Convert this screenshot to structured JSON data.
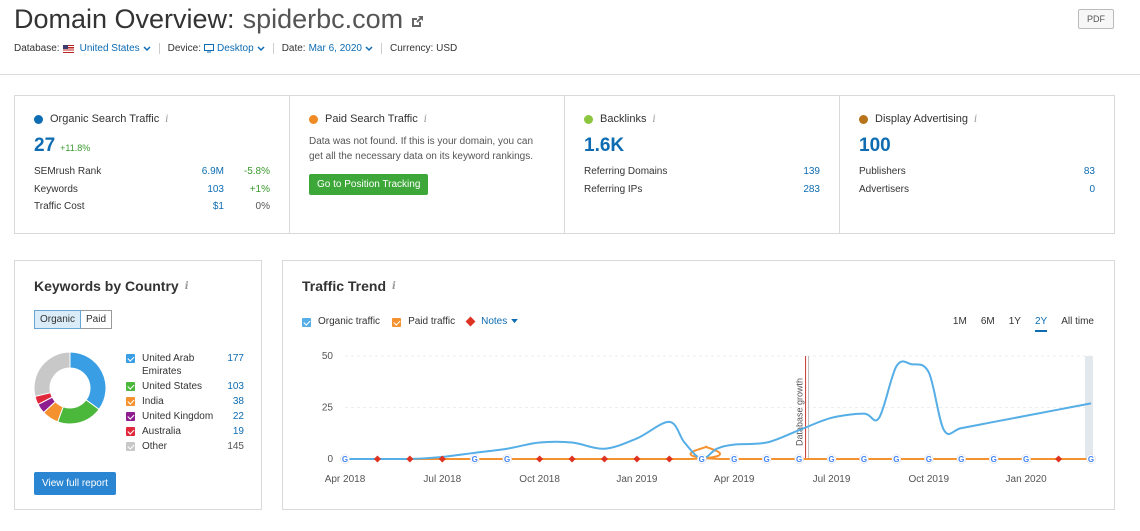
{
  "header": {
    "title_prefix": "Domain Overview:",
    "domain": "spiderbc.com",
    "database_label": "Database:",
    "database_value": "United States",
    "device_label": "Device:",
    "device_value": "Desktop",
    "date_label": "Date:",
    "date_value": "Mar 6, 2020",
    "currency": "Currency: USD",
    "pdf_label": "PDF",
    "icons": [
      "external-link-icon",
      "us-flag-icon",
      "desktop-icon",
      "chevron-down-icon"
    ]
  },
  "summary": {
    "organic": {
      "title": "Organic Search Traffic",
      "value": "27",
      "delta": "+11.8%",
      "color": "#0d6cb2",
      "rows": [
        {
          "label": "SEMrush Rank",
          "value": "6.9M",
          "change": "-5.8%"
        },
        {
          "label": "Keywords",
          "value": "103",
          "change": "+1%"
        },
        {
          "label": "Traffic Cost",
          "value": "$1",
          "change": "0%"
        }
      ]
    },
    "paid": {
      "title": "Paid Search Traffic",
      "color": "#f08a24",
      "desc": "Data was not found. If this is your domain, you can get all the necessary data on its keyword rankings.",
      "button": "Go to Position Tracking"
    },
    "backlinks": {
      "title": "Backlinks",
      "value": "1.6K",
      "color": "#8cc63f",
      "rows": [
        {
          "label": "Referring Domains",
          "value": "139"
        },
        {
          "label": "Referring IPs",
          "value": "283"
        }
      ]
    },
    "display": {
      "title": "Display Advertising",
      "value": "100",
      "color": "#b8731a",
      "rows": [
        {
          "label": "Publishers",
          "value": "83"
        },
        {
          "label": "Advertisers",
          "value": "0"
        }
      ]
    },
    "info_glyph": "i"
  },
  "keywords_by_country": {
    "title": "Keywords by Country",
    "toggle": [
      "Organic",
      "Paid"
    ],
    "countries": [
      {
        "name": "United Arab Emirates",
        "value": 177,
        "color": "#3a9ee4"
      },
      {
        "name": "United States",
        "value": 103,
        "color": "#4cb83b"
      },
      {
        "name": "India",
        "value": 38,
        "color": "#f5922f"
      },
      {
        "name": "United Kingdom",
        "value": 22,
        "color": "#8e1e8f"
      },
      {
        "name": "Australia",
        "value": 19,
        "color": "#e0283a"
      },
      {
        "name": "Other",
        "value": 145,
        "color": "#c8c8c8"
      }
    ],
    "button": "View full report"
  },
  "traffic_trend": {
    "title": "Traffic Trend",
    "legend": {
      "organic": "Organic traffic",
      "paid": "Paid traffic",
      "notes": "Notes"
    },
    "periods": [
      "1M",
      "6M",
      "1Y",
      "2Y",
      "All time"
    ],
    "active_period": "2Y",
    "annotation": "Database growth"
  },
  "chart_data": {
    "type": "line",
    "x_labels": [
      "Apr 2018",
      "Jul 2018",
      "Oct 2018",
      "Jan 2019",
      "Apr 2019",
      "Jul 2019",
      "Oct 2019",
      "Jan 2020"
    ],
    "yticks": [
      0,
      25,
      50
    ],
    "ylim": [
      0,
      50
    ],
    "series": [
      {
        "name": "Organic traffic",
        "color": "#55aee6",
        "x": [
          "2018-04",
          "2018-05",
          "2018-06",
          "2018-07",
          "2018-08",
          "2018-09",
          "2018-10",
          "2018-11",
          "2018-12",
          "2019-01",
          "2019-02",
          "2019-02-15",
          "2019-03",
          "2019-03-15",
          "2019-04",
          "2019-05",
          "2019-06",
          "2019-07",
          "2019-08",
          "2019-08-15",
          "2019-09",
          "2019-09-15",
          "2019-10",
          "2019-10-15",
          "2019-11",
          "2019-12",
          "2020-01",
          "2020-02",
          "2020-03"
        ],
        "values": [
          0,
          0,
          0,
          1,
          3,
          5,
          8,
          8,
          5,
          10,
          18,
          8,
          0,
          5,
          7,
          8,
          14,
          20,
          22,
          20,
          45,
          46,
          42,
          14,
          15,
          18,
          21,
          24,
          27
        ]
      },
      {
        "name": "Paid traffic",
        "color": "#f5922f",
        "x": [
          "2018-04",
          "2019-02-20",
          "2019-03-05",
          "2019-03-20",
          "2020-03"
        ],
        "values": [
          0,
          0,
          6,
          0,
          0
        ]
      }
    ]
  }
}
